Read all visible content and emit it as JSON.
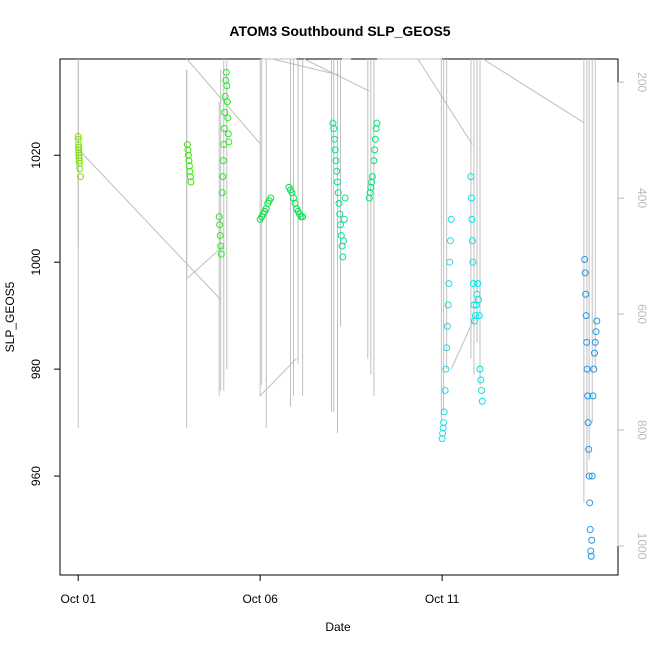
{
  "chart_data": {
    "type": "scatter",
    "title": "ATOM3 Southbound SLP_GEOS5",
    "xlabel": "Date",
    "ylabel": "SLP_GEOS5",
    "x_is_date": true,
    "xlim": [
      "2016-09-30T12:00",
      "2016-10-15T20:00"
    ],
    "ylim": [
      941.5,
      1038
    ],
    "y2lim": [
      1050,
      160
    ],
    "x_ticks": [
      {
        "date": "2016-10-01",
        "label": "Oct 01"
      },
      {
        "date": "2016-10-06",
        "label": "Oct 06"
      },
      {
        "date": "2016-10-11",
        "label": "Oct 11"
      }
    ],
    "y_ticks": [
      960,
      980,
      1000,
      1020
    ],
    "y2_ticks": [
      200,
      400,
      600,
      800,
      1000
    ],
    "grid": false,
    "colors": {
      "profile_line": "#bfbfbf",
      "axis": "#000000",
      "axis_right": "#bbbbbb"
    },
    "series": [
      {
        "color": "#7fe600",
        "points": [
          [
            "2016-10-01T00:00",
            1023.5
          ],
          [
            "2016-10-01T00:05",
            1023
          ],
          [
            "2016-10-01T00:10",
            1022
          ],
          [
            "2016-10-01T00:15",
            1021.5
          ],
          [
            "2016-10-01T00:20",
            1021
          ],
          [
            "2016-10-01T00:25",
            1020.5
          ],
          [
            "2016-10-01T00:30",
            1020
          ],
          [
            "2016-10-01T00:35",
            1019.5
          ],
          [
            "2016-10-01T00:40",
            1019
          ],
          [
            "2016-10-01T00:45",
            1018.5
          ],
          [
            "2016-10-01T01:00",
            1017.5
          ],
          [
            "2016-10-01T01:30",
            1016
          ]
        ]
      },
      {
        "color": "#33ee00",
        "points": [
          [
            "2016-10-04T00:00",
            1022
          ],
          [
            "2016-10-04T00:20",
            1021
          ],
          [
            "2016-10-04T00:40",
            1020
          ],
          [
            "2016-10-04T01:00",
            1019
          ],
          [
            "2016-10-04T01:20",
            1018
          ],
          [
            "2016-10-04T01:40",
            1017
          ],
          [
            "2016-10-04T02:00",
            1016
          ],
          [
            "2016-10-04T02:20",
            1015
          ]
        ]
      },
      {
        "color": "#22ee22",
        "points": [
          [
            "2016-10-04T21:00",
            1008.5
          ],
          [
            "2016-10-04T21:20",
            1007
          ],
          [
            "2016-10-04T21:40",
            1005
          ],
          [
            "2016-10-04T22:00",
            1003
          ],
          [
            "2016-10-04T22:20",
            1001.5
          ],
          [
            "2016-10-04T23:00",
            1013
          ],
          [
            "2016-10-04T23:20",
            1016
          ],
          [
            "2016-10-04T23:40",
            1019
          ],
          [
            "2016-10-05T00:00",
            1022
          ],
          [
            "2016-10-05T00:20",
            1025
          ],
          [
            "2016-10-05T00:40",
            1028
          ],
          [
            "2016-10-05T01:00",
            1031
          ],
          [
            "2016-10-05T01:20",
            1034
          ],
          [
            "2016-10-05T01:40",
            1035.5
          ],
          [
            "2016-10-05T02:00",
            1033
          ],
          [
            "2016-10-05T02:20",
            1030
          ],
          [
            "2016-10-05T02:40",
            1027
          ],
          [
            "2016-10-05T03:00",
            1024
          ],
          [
            "2016-10-05T03:20",
            1022.5
          ]
        ]
      },
      {
        "color": "#00e640",
        "points": [
          [
            "2016-10-06T00:00",
            1008
          ],
          [
            "2016-10-06T01:00",
            1008.5
          ],
          [
            "2016-10-06T02:00",
            1009
          ],
          [
            "2016-10-06T03:00",
            1009.5
          ],
          [
            "2016-10-06T04:00",
            1010
          ],
          [
            "2016-10-06T05:00",
            1011
          ],
          [
            "2016-10-06T06:00",
            1011.5
          ],
          [
            "2016-10-06T07:00",
            1012
          ]
        ]
      },
      {
        "color": "#00e650",
        "points": [
          [
            "2016-10-06T19:00",
            1014
          ],
          [
            "2016-10-06T20:00",
            1013.5
          ],
          [
            "2016-10-06T21:00",
            1013
          ],
          [
            "2016-10-06T22:00",
            1012
          ],
          [
            "2016-10-06T23:00",
            1011
          ],
          [
            "2016-10-07T00:00",
            1010
          ],
          [
            "2016-10-07T01:00",
            1009.5
          ],
          [
            "2016-10-07T02:00",
            1009
          ],
          [
            "2016-10-07T03:00",
            1008.5
          ],
          [
            "2016-10-07T04:00",
            1008.5
          ]
        ]
      },
      {
        "color": "#00e68c",
        "points": [
          [
            "2016-10-08T00:00",
            1026
          ],
          [
            "2016-10-08T00:30",
            1025
          ],
          [
            "2016-10-08T01:00",
            1023
          ],
          [
            "2016-10-08T01:30",
            1021
          ],
          [
            "2016-10-08T02:00",
            1019
          ],
          [
            "2016-10-08T02:30",
            1017
          ],
          [
            "2016-10-08T03:00",
            1015
          ],
          [
            "2016-10-08T03:30",
            1013
          ],
          [
            "2016-10-08T04:00",
            1011
          ],
          [
            "2016-10-08T04:30",
            1009
          ],
          [
            "2016-10-08T05:00",
            1007
          ],
          [
            "2016-10-08T05:30",
            1005
          ],
          [
            "2016-10-08T06:00",
            1003
          ],
          [
            "2016-10-08T06:30",
            1001
          ],
          [
            "2016-10-08T07:00",
            1004
          ],
          [
            "2016-10-08T07:30",
            1008
          ],
          [
            "2016-10-08T08:00",
            1012
          ]
        ]
      },
      {
        "color": "#00e678",
        "points": [
          [
            "2016-10-09T00:00",
            1012
          ],
          [
            "2016-10-09T00:30",
            1013
          ],
          [
            "2016-10-09T01:00",
            1014
          ],
          [
            "2016-10-09T01:30",
            1015
          ],
          [
            "2016-10-09T02:00",
            1016
          ],
          [
            "2016-10-09T03:00",
            1019
          ],
          [
            "2016-10-09T03:30",
            1021
          ],
          [
            "2016-10-09T04:00",
            1023
          ],
          [
            "2016-10-09T04:30",
            1025
          ],
          [
            "2016-10-09T05:00",
            1026
          ]
        ]
      },
      {
        "color": "#22dde6",
        "points": [
          [
            "2016-10-11T00:00",
            967
          ],
          [
            "2016-10-11T00:20",
            968
          ],
          [
            "2016-10-11T00:40",
            969
          ],
          [
            "2016-10-11T01:00",
            970
          ],
          [
            "2016-10-11T01:20",
            972
          ],
          [
            "2016-10-11T02:00",
            976
          ],
          [
            "2016-10-11T02:30",
            980
          ],
          [
            "2016-10-11T03:00",
            984
          ],
          [
            "2016-10-11T03:30",
            988
          ],
          [
            "2016-10-11T04:00",
            992
          ],
          [
            "2016-10-11T04:30",
            996
          ],
          [
            "2016-10-11T05:00",
            1000
          ],
          [
            "2016-10-11T05:30",
            1004
          ],
          [
            "2016-10-11T06:00",
            1008
          ]
        ]
      },
      {
        "color": "#00e6e6",
        "points": [
          [
            "2016-10-11T19:00",
            1016
          ],
          [
            "2016-10-11T19:20",
            1012
          ],
          [
            "2016-10-11T19:40",
            1008
          ],
          [
            "2016-10-11T20:00",
            1004
          ],
          [
            "2016-10-11T20:20",
            1000
          ],
          [
            "2016-10-11T20:40",
            996
          ],
          [
            "2016-10-11T21:00",
            992
          ],
          [
            "2016-10-11T21:20",
            989
          ],
          [
            "2016-10-11T22:00",
            990
          ],
          [
            "2016-10-11T22:30",
            992
          ],
          [
            "2016-10-11T23:00",
            994
          ],
          [
            "2016-10-11T23:30",
            996
          ],
          [
            "2016-10-12T00:00",
            993
          ],
          [
            "2016-10-12T00:30",
            990
          ],
          [
            "2016-10-12T01:00",
            980
          ],
          [
            "2016-10-12T01:30",
            978
          ],
          [
            "2016-10-12T02:00",
            976
          ],
          [
            "2016-10-12T02:30",
            974
          ]
        ]
      },
      {
        "color": "#1e9be6",
        "points": [
          [
            "2016-10-14T22:00",
            1000.5
          ],
          [
            "2016-10-14T22:20",
            998
          ],
          [
            "2016-10-14T22:40",
            994
          ],
          [
            "2016-10-14T23:00",
            990
          ],
          [
            "2016-10-14T23:20",
            985
          ],
          [
            "2016-10-14T23:40",
            980
          ],
          [
            "2016-10-15T00:00",
            975
          ],
          [
            "2016-10-15T00:20",
            970
          ],
          [
            "2016-10-15T00:40",
            965
          ],
          [
            "2016-10-15T01:00",
            960
          ],
          [
            "2016-10-15T01:20",
            955
          ],
          [
            "2016-10-15T01:40",
            950
          ],
          [
            "2016-10-15T02:00",
            946
          ],
          [
            "2016-10-15T02:20",
            945
          ],
          [
            "2016-10-15T02:40",
            948
          ],
          [
            "2016-10-15T03:00",
            960
          ],
          [
            "2016-10-15T03:30",
            975
          ],
          [
            "2016-10-15T04:00",
            980
          ],
          [
            "2016-10-15T04:30",
            983
          ],
          [
            "2016-10-15T05:00",
            985
          ],
          [
            "2016-10-15T05:30",
            987
          ],
          [
            "2016-10-15T06:00",
            989
          ]
        ]
      }
    ],
    "profiles": [
      {
        "time": "2016-10-01T00:00",
        "top": 1038,
        "bottom": 969
      },
      {
        "time": "2016-10-01T00:06",
        "top": 1038,
        "bottom": 1003
      },
      {
        "time": "2016-10-03T23:30",
        "top": 1036,
        "bottom": 969
      },
      {
        "time": "2016-10-03T23:36",
        "top": 1036,
        "bottom": 997
      },
      {
        "time": "2016-10-04T21:00",
        "top": 1030,
        "bottom": 975
      },
      {
        "time": "2016-10-04T22:00",
        "top": 1036,
        "bottom": 976
      },
      {
        "time": "2016-10-05T00:00",
        "top": 1038,
        "bottom": 976
      },
      {
        "time": "2016-10-05T02:00",
        "top": 1038,
        "bottom": 980
      },
      {
        "time": "2016-10-06T00:00",
        "top": 1038,
        "bottom": 975
      },
      {
        "time": "2016-10-06T01:00",
        "top": 1038,
        "bottom": 977
      },
      {
        "time": "2016-10-06T04:00",
        "top": 1038,
        "bottom": 969
      },
      {
        "time": "2016-10-06T20:00",
        "top": 1038,
        "bottom": 973
      },
      {
        "time": "2016-10-06T22:00",
        "top": 1038,
        "bottom": 975
      },
      {
        "time": "2016-10-07T01:00",
        "top": 1038,
        "bottom": 981
      },
      {
        "time": "2016-10-07T04:00",
        "top": 1038,
        "bottom": 975
      },
      {
        "time": "2016-10-07T23:00",
        "top": 1038,
        "bottom": 972
      },
      {
        "time": "2016-10-08T00:30",
        "top": 1038,
        "bottom": 972
      },
      {
        "time": "2016-10-08T03:00",
        "top": 1038,
        "bottom": 968
      },
      {
        "time": "2016-10-08T05:00",
        "top": 1038,
        "bottom": 988
      },
      {
        "time": "2016-10-08T23:00",
        "top": 1038,
        "bottom": 982
      },
      {
        "time": "2016-10-09T01:00",
        "top": 1038,
        "bottom": 979
      },
      {
        "time": "2016-10-09T03:00",
        "top": 1038,
        "bottom": 975
      },
      {
        "time": "2016-10-10T23:30",
        "top": 1038,
        "bottom": 970
      },
      {
        "time": "2016-10-11T01:00",
        "top": 1038,
        "bottom": 972
      },
      {
        "time": "2016-10-11T03:00",
        "top": 1038,
        "bottom": 980
      },
      {
        "time": "2016-10-11T19:00",
        "top": 1038,
        "bottom": 982
      },
      {
        "time": "2016-10-11T21:00",
        "top": 1038,
        "bottom": 979
      },
      {
        "time": "2016-10-11T23:00",
        "top": 1038,
        "bottom": 985
      },
      {
        "time": "2016-10-12T01:00",
        "top": 1038,
        "bottom": 977
      },
      {
        "time": "2016-10-14T21:30",
        "top": 1038,
        "bottom": 955
      },
      {
        "time": "2016-10-14T23:30",
        "top": 1038,
        "bottom": 960
      },
      {
        "time": "2016-10-15T01:00",
        "top": 1038,
        "bottom": 963
      },
      {
        "time": "2016-10-15T03:00",
        "top": 1038,
        "bottom": 970
      },
      {
        "time": "2016-10-15T05:00",
        "top": 1038,
        "bottom": 980
      }
    ],
    "transits": [
      [
        [
          "2016-10-01T00:30",
          1021
        ],
        [
          "2016-10-04T22:00",
          993
        ]
      ],
      [
        [
          "2016-10-03T23:40",
          1038
        ],
        [
          "2016-10-06T00:30",
          1022
        ]
      ],
      [
        [
          "2016-10-06T01:00",
          1038
        ],
        [
          "2016-10-07T00:00",
          1038
        ]
      ],
      [
        [
          "2016-10-04T00:00",
          997
        ],
        [
          "2016-10-04T23:30",
          1003
        ]
      ],
      [
        [
          "2016-10-06T00:00",
          975
        ],
        [
          "2016-10-07T00:00",
          982
        ]
      ],
      [
        [
          "2016-10-06T08:00",
          1038
        ],
        [
          "2016-10-08T04:00",
          1035
        ]
      ],
      [
        [
          "2016-10-07T05:00",
          1038
        ],
        [
          "2016-10-09T00:00",
          1032
        ]
      ],
      [
        [
          "2016-10-08T06:00",
          1038
        ],
        [
          "2016-10-08T12:00",
          1038
        ]
      ],
      [
        [
          "2016-10-09T05:00",
          1038
        ],
        [
          "2016-10-11T00:00",
          1038
        ]
      ],
      [
        [
          "2016-10-10T08:00",
          1038
        ],
        [
          "2016-10-11T20:00",
          1022
        ]
      ],
      [
        [
          "2016-10-11T06:00",
          980
        ],
        [
          "2016-10-11T22:00",
          990
        ]
      ],
      [
        [
          "2016-10-12T03:00",
          1038
        ],
        [
          "2016-10-14T22:00",
          1026
        ]
      ]
    ]
  }
}
